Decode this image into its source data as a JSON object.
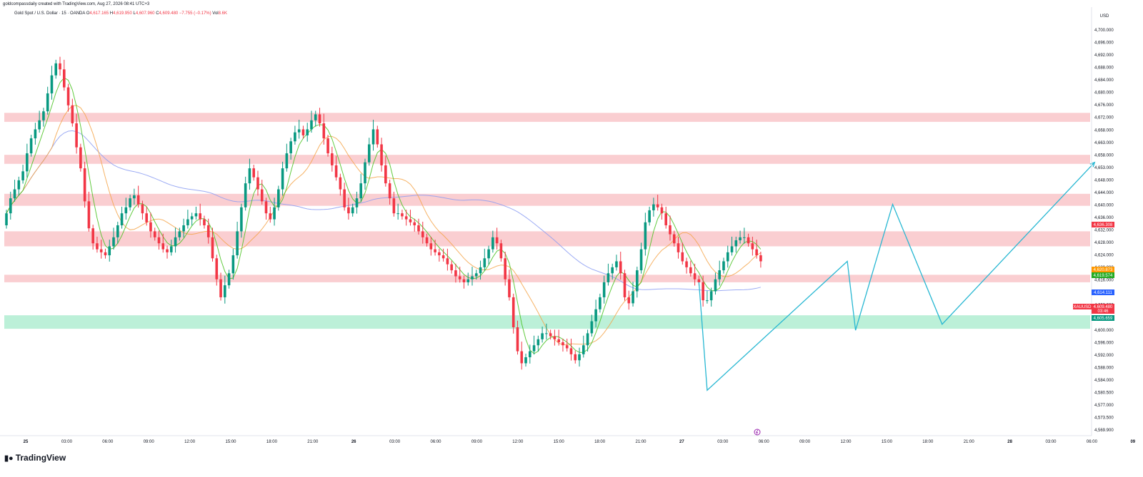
{
  "header": {
    "caption": "goldcompassdaily created with TradingView.com, Aug 27, 2026 08:41 UTC+3",
    "symbol": "Gold Spot / U.S. Dollar · 15 · OANDA",
    "o_label": "O",
    "o_value": "4,617.165",
    "h_label": "H",
    "h_value": "4,619.950",
    "l_label": "L",
    "l_value": "4,607.960",
    "c_label": "C",
    "c_value": "4,609.480",
    "change": "−7.755 (−0.17%)",
    "vol_label": "Vol",
    "vol_value": "8.6K"
  },
  "footer": {
    "brand": "TradingView"
  },
  "colors": {
    "up": "#089981",
    "down": "#f23645",
    "zone_red": "#f7b3b8",
    "zone_green": "#a6ebcb",
    "projection": "#27b7d2",
    "ma_slow": "#8b9cf2",
    "ma_fast": "#46c21f",
    "ma_mid": "#f5a54a"
  },
  "chart_data": {
    "type": "candlestick",
    "symbol": "XAUUSD",
    "currency": "USD",
    "y_axis_ticks": [
      "4,700.000",
      "4,696.000",
      "4,692.000",
      "4,688.000",
      "4,684.000",
      "4,680.000",
      "4,676.000",
      "4,672.000",
      "4,668.000",
      "4,663.000",
      "4,658.000",
      "4,653.000",
      "4,648.000",
      "4,644.000",
      "4,640.000",
      "4,636.000",
      "4,632.000",
      "4,628.000",
      "4,624.000",
      "4,620.000",
      "4,616.000",
      "4,612.000",
      "4,608.000",
      "4,604.000",
      "4,600.000",
      "4,596.000",
      "4,592.000",
      "4,588.000",
      "4,584.000",
      "4,580.500",
      "4,577.000",
      "4,573.500",
      "4,569.900"
    ],
    "x_axis_ticks": [
      "25",
      "03:00",
      "06:00",
      "09:00",
      "12:00",
      "15:00",
      "18:00",
      "21:00",
      "26",
      "03:00",
      "06:00",
      "09:00",
      "12:00",
      "15:00",
      "18:00",
      "21:00",
      "27",
      "03:00",
      "06:00",
      "09:00",
      "12:00",
      "15:00",
      "18:00",
      "21:00",
      "28",
      "03:00",
      "06:00",
      "09"
    ],
    "ylim": [
      4568,
      4704
    ],
    "price_badges": [
      {
        "label": "4,636.308",
        "color": "#f23645"
      },
      {
        "label": "4,620.873",
        "color": "#ff9800"
      },
      {
        "label": "4,619.574",
        "color": "#22ab22"
      },
      {
        "label": "4,614.111",
        "color": "#2962ff"
      },
      {
        "label": "XAUUSD",
        "color": "#f23645"
      },
      {
        "label": "4,609.480",
        "color": "#f23645"
      },
      {
        "label": "03:46",
        "color": "#f23645"
      },
      {
        "label": "4,605.659",
        "color": "#089981"
      }
    ],
    "zones": [
      {
        "kind": "supply",
        "from": 4670.5,
        "to": 4673.5
      },
      {
        "kind": "supply",
        "from": 4656.5,
        "to": 4659.5
      },
      {
        "kind": "supply",
        "from": 4642.5,
        "to": 4646.5
      },
      {
        "kind": "supply",
        "from": 4629.0,
        "to": 4634.0
      },
      {
        "kind": "supply",
        "from": 4617.0,
        "to": 4619.5
      },
      {
        "kind": "demand",
        "from": 4601.5,
        "to": 4606.0
      }
    ],
    "candles": {
      "count": 184,
      "first_time": "Aug 25 00:00",
      "interval_min": 15,
      "close": [
        4640,
        4645,
        4648,
        4651,
        4654,
        4660,
        4665,
        4668,
        4671,
        4674,
        4680,
        4686,
        4690,
        4688,
        4682,
        4676,
        4670,
        4662,
        4655,
        4644,
        4635,
        4630,
        4628,
        4627,
        4626,
        4629,
        4632,
        4636,
        4640,
        4642,
        4645,
        4646,
        4643,
        4640,
        4637,
        4634,
        4632,
        4630,
        4628,
        4627,
        4629,
        4632,
        4634,
        4636,
        4638,
        4639,
        4640,
        4638,
        4636,
        4632,
        4625,
        4618,
        4612,
        4616,
        4620,
        4626,
        4634,
        4642,
        4650,
        4655,
        4652,
        4648,
        4644,
        4640,
        4638,
        4642,
        4648,
        4655,
        4660,
        4664,
        4667,
        4668,
        4666,
        4668,
        4671,
        4673,
        4670,
        4665,
        4660,
        4656,
        4652,
        4648,
        4642,
        4640,
        4642,
        4645,
        4650,
        4657,
        4663,
        4668,
        4663,
        4656,
        4650,
        4645,
        4640,
        4640,
        4639,
        4638,
        4637,
        4636,
        4634,
        4632,
        4630,
        4628,
        4627,
        4626,
        4625,
        4623,
        4621,
        4619,
        4618,
        4617,
        4618,
        4619,
        4620,
        4622,
        4625,
        4628,
        4632,
        4630,
        4625,
        4618,
        4612,
        4602,
        4594,
        4590,
        4592,
        4594,
        4596,
        4598,
        4600,
        4600,
        4599,
        4598,
        4597,
        4596,
        4595,
        4593,
        4591,
        4593,
        4596,
        4600,
        4604,
        4608,
        4612,
        4617,
        4620,
        4622,
        4624,
        4620,
        4612,
        4610,
        4614,
        4621,
        4628,
        4637,
        4641,
        4643,
        4642,
        4640,
        4636,
        4633,
        4630,
        4627,
        4624,
        4622,
        4620,
        4618,
        4617,
        4611,
        4611,
        4614,
        4618,
        4621,
        4624,
        4627,
        4629,
        4631,
        4632,
        4632,
        4630,
        4628,
        4626,
        4624
      ],
      "open": [
        4636,
        4640,
        4645,
        4648,
        4651,
        4654,
        4660,
        4665,
        4668,
        4671,
        4674,
        4680,
        4686,
        4690,
        4688,
        4682,
        4676,
        4670,
        4662,
        4655,
        4644,
        4635,
        4630,
        4628,
        4627,
        4626,
        4629,
        4632,
        4636,
        4640,
        4642,
        4645,
        4646,
        4643,
        4640,
        4637,
        4634,
        4632,
        4630,
        4628,
        4627,
        4629,
        4632,
        4634,
        4636,
        4638,
        4639,
        4640,
        4638,
        4636,
        4632,
        4625,
        4618,
        4612,
        4616,
        4620,
        4626,
        4634,
        4642,
        4650,
        4655,
        4652,
        4648,
        4644,
        4640,
        4638,
        4642,
        4648,
        4655,
        4660,
        4664,
        4667,
        4668,
        4666,
        4668,
        4671,
        4673,
        4670,
        4665,
        4660,
        4656,
        4652,
        4648,
        4642,
        4640,
        4642,
        4645,
        4650,
        4657,
        4663,
        4668,
        4663,
        4656,
        4650,
        4645,
        4640,
        4640,
        4639,
        4638,
        4637,
        4636,
        4634,
        4632,
        4630,
        4628,
        4627,
        4626,
        4625,
        4623,
        4621,
        4619,
        4618,
        4617,
        4618,
        4619,
        4620,
        4622,
        4625,
        4628,
        4632,
        4630,
        4625,
        4618,
        4612,
        4602,
        4594,
        4590,
        4592,
        4594,
        4596,
        4598,
        4600,
        4600,
        4599,
        4598,
        4597,
        4596,
        4595,
        4593,
        4591,
        4593,
        4596,
        4600,
        4604,
        4608,
        4612,
        4617,
        4620,
        4622,
        4624,
        4620,
        4612,
        4610,
        4614,
        4621,
        4628,
        4637,
        4641,
        4643,
        4642,
        4640,
        4636,
        4633,
        4630,
        4627,
        4624,
        4622,
        4620,
        4618,
        4617,
        4611,
        4611,
        4614,
        4618,
        4621,
        4624,
        4627,
        4629,
        4631,
        4632,
        4632,
        4630,
        4628,
        4626
      ]
    },
    "projection_path": [
      {
        "time": "Aug 26 18:00",
        "price": 4617
      },
      {
        "time": "Aug 26 18:30",
        "price": 4581
      },
      {
        "time": "Aug 27 03:00",
        "price": 4624
      },
      {
        "time": "Aug 27 03:30",
        "price": 4601
      },
      {
        "time": "Aug 27 05:45",
        "price": 4643
      },
      {
        "time": "Aug 27 08:45",
        "price": 4603
      },
      {
        "time": "Aug 27 18:00",
        "price": 4657
      }
    ]
  }
}
